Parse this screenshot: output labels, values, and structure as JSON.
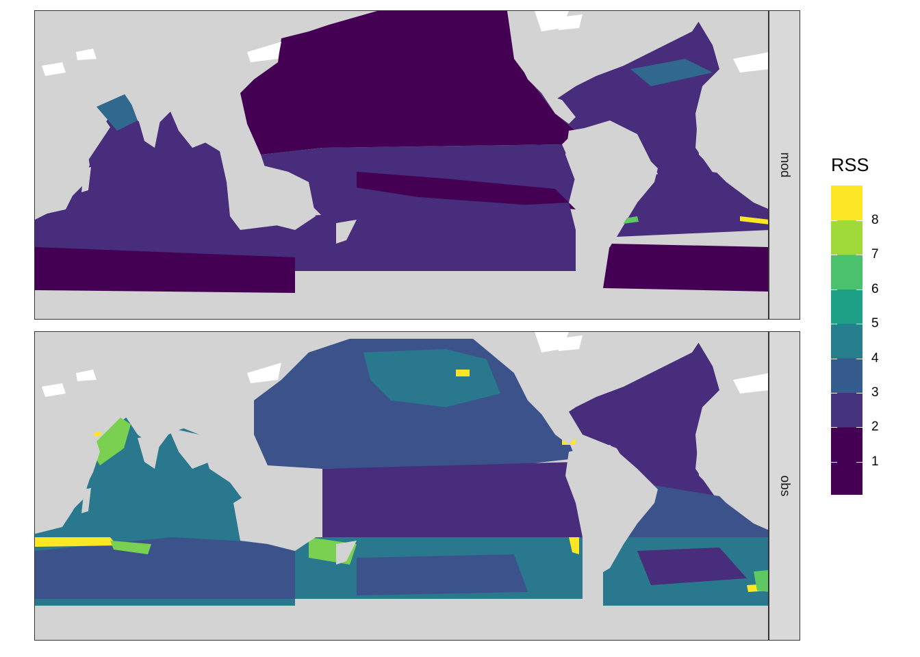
{
  "facets": [
    {
      "id": "mod",
      "label": "mod"
    },
    {
      "id": "obs",
      "label": "obs"
    }
  ],
  "legend": {
    "title": "RSS",
    "breaks": [
      "1",
      "2",
      "3",
      "4",
      "5",
      "6",
      "7",
      "8"
    ],
    "colors": [
      "#440154",
      "#46337e",
      "#365c8d",
      "#277f8e",
      "#1fa187",
      "#4ac16d",
      "#a0da39",
      "#fde725"
    ]
  },
  "map_colors": {
    "land": "#d3d3d3",
    "ice": "#ffffff",
    "strip": "#d9d9d9"
  }
}
